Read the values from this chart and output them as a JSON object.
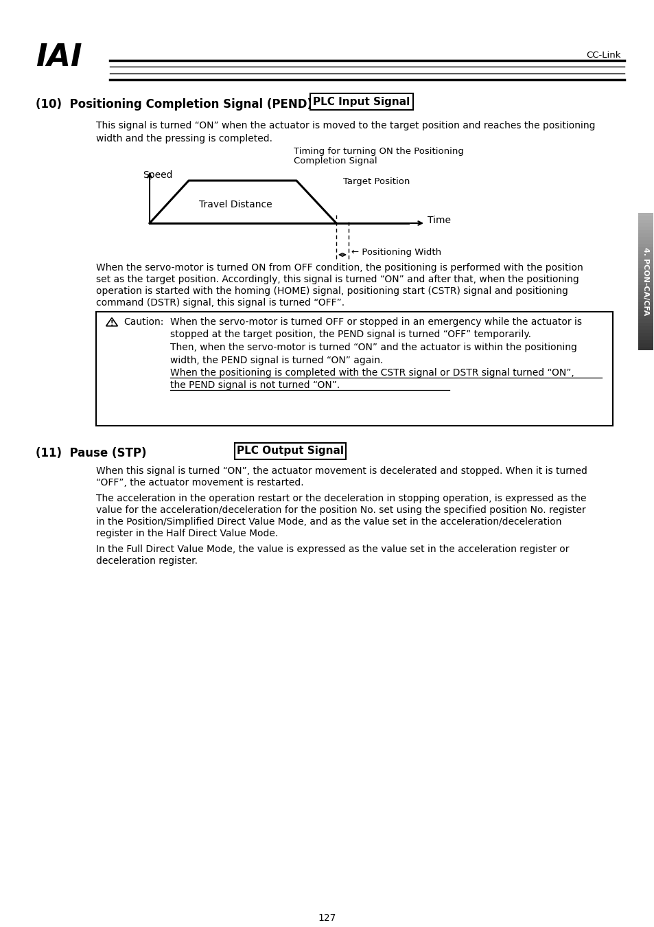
{
  "bg_color": "#ffffff",
  "header_text": "CC-Link",
  "logo_text": "IAI",
  "section10_number": "(10)  Positioning Completion Signal (PEND)",
  "section10_badge": "PLC Input Signal",
  "section10_desc1": "This signal is turned “ON” when the actuator is moved to the target position and reaches the positioning",
  "section10_desc2": "width and the pressing is completed.",
  "diagram_timing_label1": "Timing for turning ON the Positioning",
  "diagram_timing_label2": "Completion Signal",
  "diagram_speed_label": "Speed",
  "diagram_travel_label": "Travel Distance",
  "diagram_target_label": "Target Position",
  "diagram_time_label": "Time",
  "diagram_pos_width_label": "← Positioning Width",
  "section10_body1": "When the servo-motor is turned ON from OFF condition, the positioning is performed with the position",
  "section10_body2": "set as the target position. Accordingly, this signal is turned “ON” and after that, when the positioning",
  "section10_body3": "operation is started with the homing (HOME) signal, positioning start (CSTR) signal and positioning",
  "section10_body4": "command (DSTR) signal, this signal is turned “OFF”.",
  "caution_label": "Caution:",
  "caution_line1": "When the servo-motor is turned OFF or stopped in an emergency while the actuator is",
  "caution_line2": "stopped at the target position, the PEND signal is turned “OFF” temporarily.",
  "caution_line3": "Then, when the servo-motor is turned “ON” and the actuator is within the positioning",
  "caution_line4": "width, the PEND signal is turned “ON” again.",
  "caution_line5": "When the positioning is completed with the CSTR signal or DSTR signal turned “ON”,",
  "caution_line6": "the PEND signal is not turned “ON”.",
  "section11_number": "(11)  Pause (STP)",
  "section11_badge": "PLC Output Signal",
  "section11_body1": "When this signal is turned “ON”, the actuator movement is decelerated and stopped. When it is turned",
  "section11_body2": "“OFF”, the actuator movement is restarted.",
  "section11_body3": "The acceleration in the operation restart or the deceleration in stopping operation, is expressed as the",
  "section11_body4": "value for the acceleration/deceleration for the position No. set using the specified position No. register",
  "section11_body5": "in the Position/Simplified Direct Value Mode, and as the value set in the acceleration/deceleration",
  "section11_body6": "register in the Half Direct Value Mode.",
  "section11_body7": "In the Full Direct Value Mode, the value is expressed as the value set in the acceleration register or",
  "section11_body8": "deceleration register.",
  "page_number": "127",
  "right_tab_text": "4. PCON-CA/CFA"
}
